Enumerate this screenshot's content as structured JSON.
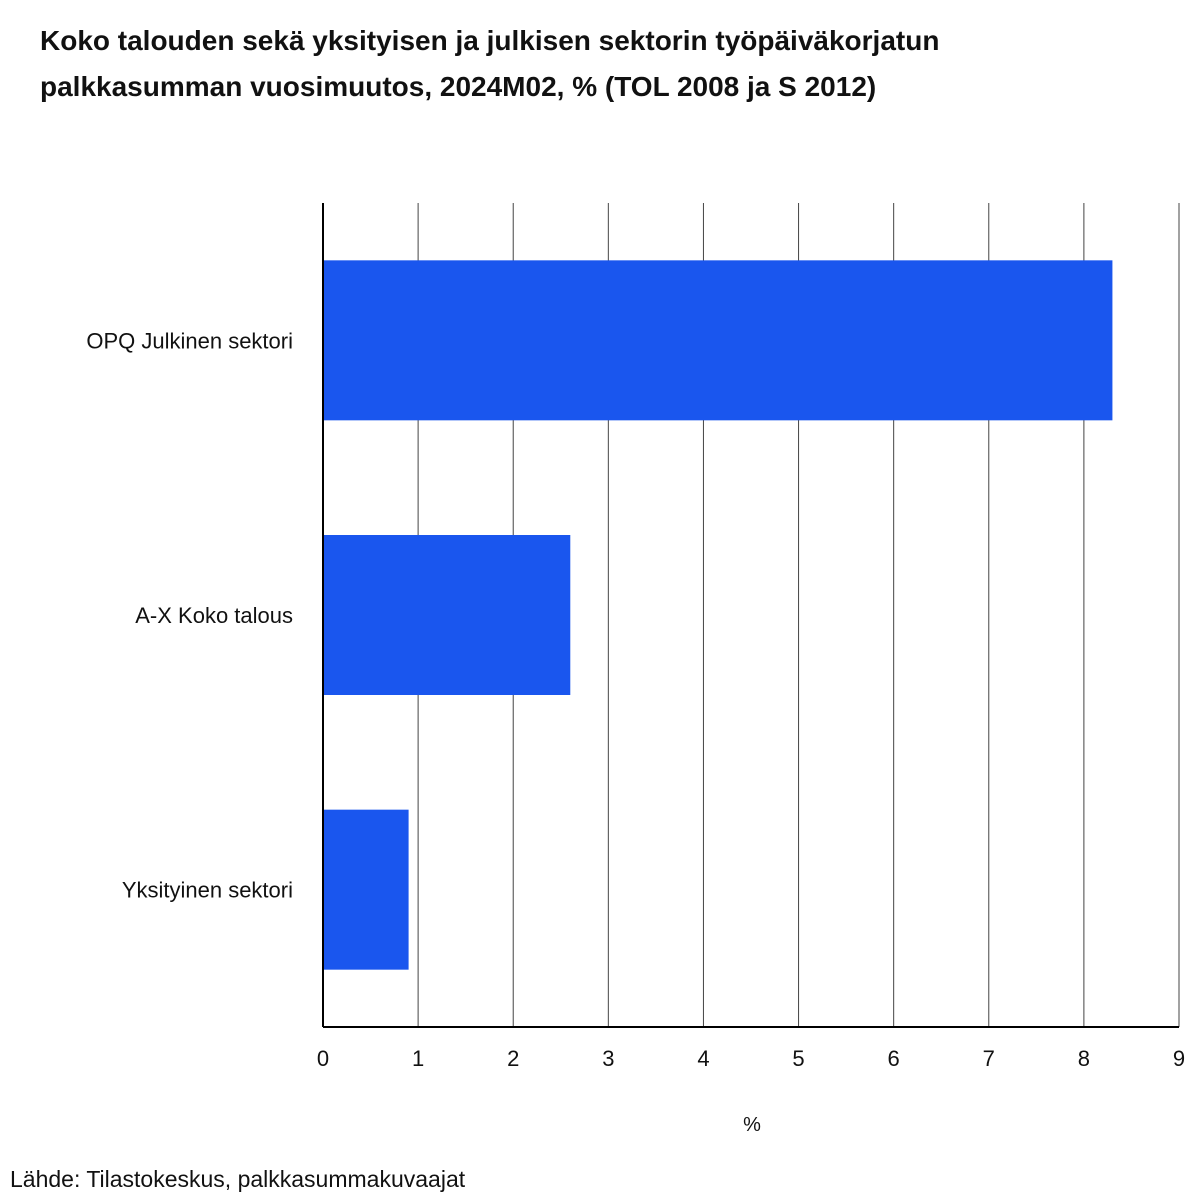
{
  "title_line1": "Koko talouden sekä yksityisen ja julkisen sektorin työpäiväkorjatun",
  "title_line2": "palkkasumman vuosimuutos, 2024M02, % (TOL 2008 ja S 2012)",
  "source": "Lähde: Tilastokeskus, palkkasummakuvaajat",
  "colors": {
    "bar": "#1a56ee",
    "grid": "#444444",
    "axis": "#000000"
  },
  "chart_data": {
    "type": "bar",
    "orientation": "horizontal",
    "categories": [
      "OPQ Julkinen sektori",
      "A-X Koko talous",
      "Yksityinen sektori"
    ],
    "values": [
      8.3,
      2.6,
      0.9
    ],
    "xlabel": "%",
    "ylabel": "",
    "xlim": [
      0,
      9
    ],
    "xticks": [
      "0",
      "1",
      "2",
      "3",
      "4",
      "5",
      "6",
      "7",
      "8",
      "9"
    ],
    "grid": true,
    "legend": "none"
  }
}
